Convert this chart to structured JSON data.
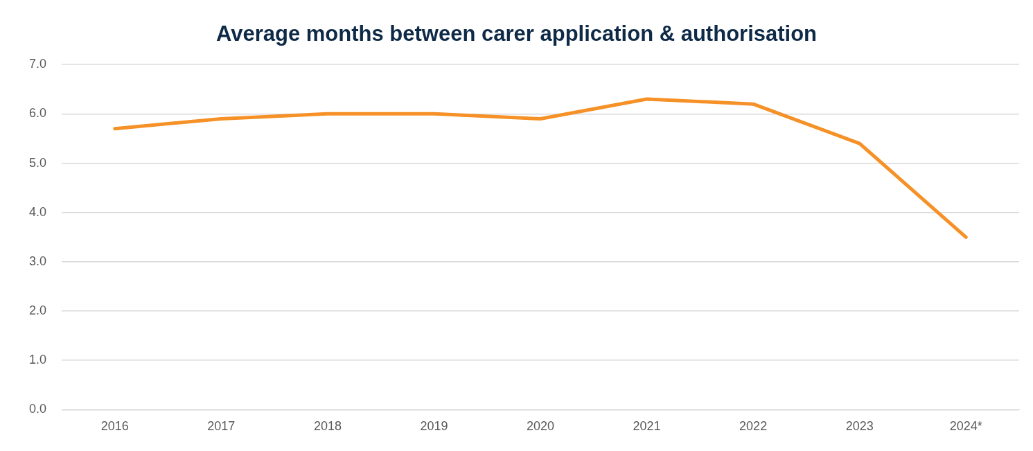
{
  "chart_data": {
    "type": "line",
    "title": "Average months between carer application & authorisation",
    "categories": [
      "2016",
      "2017",
      "2018",
      "2019",
      "2020",
      "2021",
      "2022",
      "2023",
      "2024*"
    ],
    "series": [
      {
        "color": "#f59127",
        "values": [
          5.7,
          5.9,
          6.0,
          6.0,
          5.9,
          6.3,
          6.2,
          5.4,
          3.5
        ]
      }
    ],
    "ylim": [
      0,
      7
    ],
    "yticks": [
      {
        "value": 0,
        "label": "0.0"
      },
      {
        "value": 1,
        "label": "1.0"
      },
      {
        "value": 2,
        "label": "2.0"
      },
      {
        "value": 3,
        "label": "3.0"
      },
      {
        "value": 4,
        "label": "4.0"
      },
      {
        "value": 5,
        "label": "5.0"
      },
      {
        "value": 6,
        "label": "6.0"
      },
      {
        "value": 7,
        "label": "7.0"
      }
    ],
    "grid": "y",
    "legend": false,
    "marker": "none",
    "line_style": "solid"
  }
}
